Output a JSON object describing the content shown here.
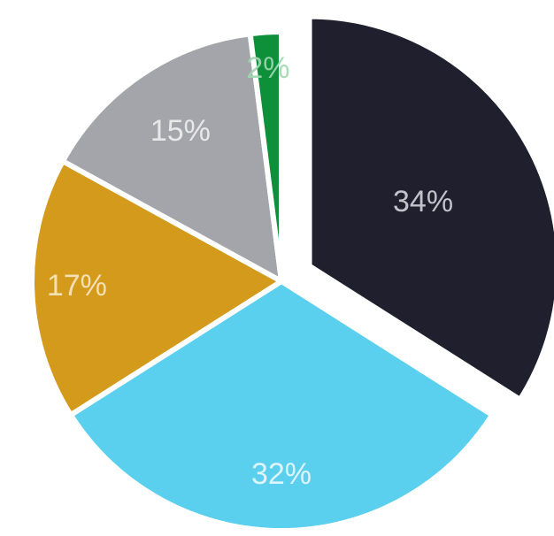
{
  "chart_data": {
    "type": "pie",
    "slices": [
      {
        "label": "34%",
        "value": 34,
        "color": "#1f1f2e",
        "label_color": "#cfd0d8"
      },
      {
        "label": "32%",
        "value": 32,
        "color": "#5bd0ee",
        "label_color": "#e8f8fd"
      },
      {
        "label": "17%",
        "value": 17,
        "color": "#d49a1c",
        "label_color": "#f6e6c0"
      },
      {
        "label": "15%",
        "value": 15,
        "color": "#a4a4ab",
        "label_color": "#eeeeef"
      },
      {
        "label": "2%",
        "value": 2,
        "color": "#0e8f3a",
        "label_color": "#9fd8b0"
      }
    ],
    "exploded_slice": 0,
    "legend": "none",
    "title": ""
  }
}
